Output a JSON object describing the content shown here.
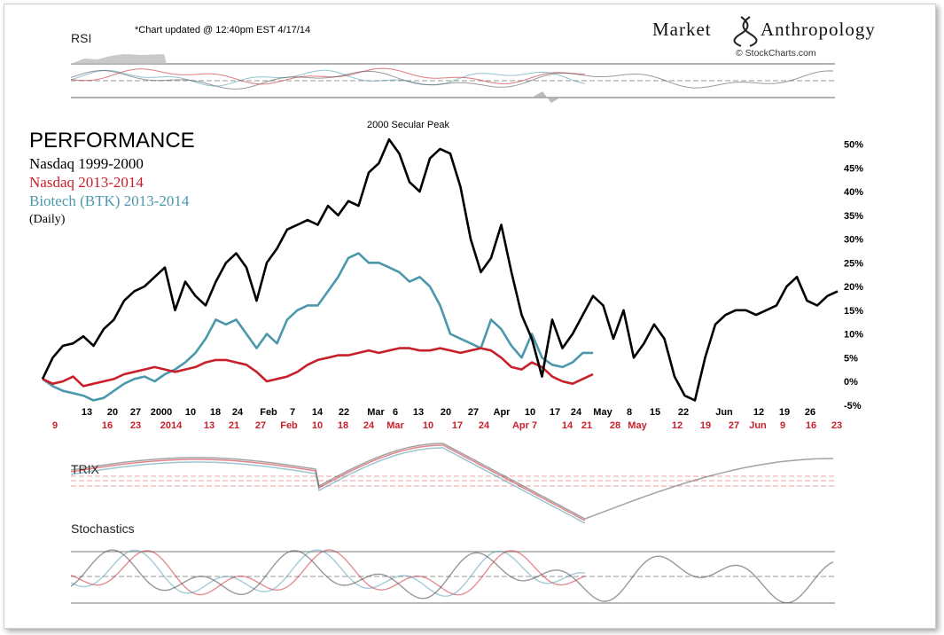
{
  "header": {
    "update_note": "*Chart updated @ 12:40pm EST 4/17/14",
    "brand_left": "Market",
    "brand_right": "Anthropology",
    "copyright": "© StockCharts.com"
  },
  "panels": {
    "rsi_label": "RSI",
    "trix_label": "TRIX",
    "stoch_label": "Stochastics"
  },
  "legend": {
    "title": "PERFORMANCE",
    "items": [
      {
        "label": "Nasdaq 1999-2000",
        "color": "#000000"
      },
      {
        "label": "Nasdaq  2013-2014",
        "color": "#c8202a"
      },
      {
        "label": "Biotech (BTK) 2013-2014",
        "color": "#4b98ad"
      }
    ],
    "note": "(Daily)"
  },
  "annotation": "2000 Secular Peak",
  "colors": {
    "nasdaq_2000": "#000000",
    "nasdaq_2014": "#c8202a",
    "biotech": "#4b98ad"
  },
  "chart_data": {
    "type": "line",
    "y_unit": "%",
    "ylim": [
      -5,
      52
    ],
    "y_ticks": [
      "50%",
      "45%",
      "40%",
      "35%",
      "30%",
      "25%",
      "20%",
      "15%",
      "10%",
      "5%",
      "0%",
      "-5%"
    ],
    "x_ticks_1999_2000": [
      "13",
      "20",
      "27",
      "2000",
      "10",
      "18",
      "24",
      "Feb",
      "7",
      "14",
      "22",
      "Mar",
      "6",
      "13",
      "20",
      "27",
      "Apr",
      "10",
      "17",
      "24",
      "May",
      "8",
      "15",
      "22",
      "Jun",
      "12",
      "19",
      "26"
    ],
    "x_ticks_2013_2014": [
      "9",
      "16",
      "23",
      "2014",
      "13",
      "21",
      "27",
      "Feb",
      "10",
      "18",
      "24",
      "Mar",
      "10",
      "17",
      "24",
      "Apr 7",
      "14",
      "21",
      "28",
      "May",
      "12",
      "19",
      "27",
      "Jun",
      "9",
      "16",
      "23"
    ],
    "series": [
      {
        "name": "Nasdaq 1999-2000",
        "values": [
          0.5,
          5,
          7.5,
          8,
          9.5,
          7.5,
          11,
          13,
          17,
          19,
          20,
          22,
          24,
          15,
          21,
          18,
          16,
          21,
          25,
          27,
          24,
          17,
          25,
          28,
          32,
          33,
          34,
          33,
          37,
          35,
          38,
          37,
          44,
          46,
          51,
          48,
          42,
          40,
          47,
          49,
          48,
          41,
          30,
          23,
          26,
          33,
          23,
          14,
          9,
          1,
          13,
          7,
          10,
          14,
          18,
          16,
          9,
          15,
          5,
          8,
          12,
          9,
          1,
          -3,
          -4,
          5,
          12,
          14,
          15,
          15,
          14,
          15,
          16,
          20,
          22,
          17,
          16,
          18,
          19
        ],
        "x_index_start": 0
      },
      {
        "name": "Nasdaq  2013-2014",
        "values": [
          0.5,
          -0.5,
          0,
          1,
          -1,
          -0.5,
          0,
          0.5,
          1.5,
          2,
          2.5,
          3,
          2.5,
          2,
          2.5,
          3,
          4,
          4.5,
          4.5,
          4,
          3.5,
          2,
          0,
          0.5,
          1,
          2,
          3.5,
          4.5,
          5,
          5.5,
          5.5,
          6,
          6.5,
          6,
          6.5,
          7,
          7,
          6.5,
          6.5,
          7,
          6.5,
          6,
          6.5,
          7,
          6.5,
          5,
          3,
          2.5,
          4,
          3,
          1,
          0,
          -0.5,
          0.5,
          1.5
        ],
        "x_index_start": 0
      },
      {
        "name": "Biotech (BTK) 2013-2014",
        "values": [
          0.5,
          -1,
          -2,
          -2.5,
          -3,
          -4,
          -3.5,
          -2,
          -0.5,
          0.5,
          1,
          0,
          1.5,
          2.5,
          4,
          6,
          9,
          13,
          12,
          13,
          10,
          7,
          10,
          8,
          13,
          15,
          16,
          16,
          19,
          22,
          26,
          27,
          25,
          25,
          24,
          23,
          21,
          22,
          20,
          16,
          10,
          9,
          8,
          7,
          13,
          11,
          7.5,
          5,
          10,
          5,
          3.5,
          3,
          4,
          6,
          6
        ]
      }
    ]
  }
}
